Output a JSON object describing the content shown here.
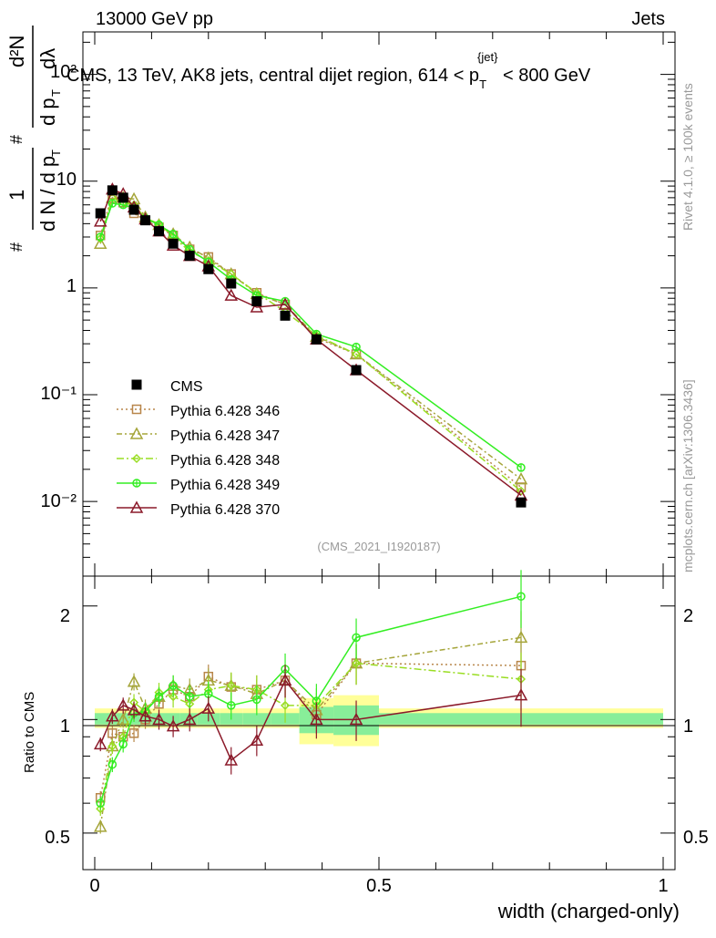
{
  "header": {
    "left": "13000 GeV pp",
    "right": "Jets",
    "rivet": "Rivet 4.1.0, ≥ 100k events",
    "mcplots": "mcplots.cern.ch [arXiv:1306.3436]",
    "analysis": "(CMS_2021_I1920187)"
  },
  "title": {
    "main": "CMS, 13 TeV, AK8 jets, central dijet region, 614 < p",
    "sub": "T",
    "sup": "{jet}",
    "tail": " < 800 GeV"
  },
  "main_ylabel": {
    "hash": "#",
    "one": "1",
    "dn": "d N / d p",
    "t": "T",
    "d2n": "d²N",
    "dpt": "d p",
    "dlambda": "dλ"
  },
  "ratio_ylabel": "Ratio to CMS",
  "xlabel": "width (charged-only)",
  "chart_data": [
    {
      "type": "line",
      "panel": "main",
      "yscale": "log",
      "xlim": [
        -0.025,
        1.0
      ],
      "ylim": [
        0.002,
        250
      ],
      "x": [
        0.01,
        0.031,
        0.05,
        0.069,
        0.089,
        0.113,
        0.138,
        0.167,
        0.2,
        0.24,
        0.285,
        0.335,
        0.39,
        0.46,
        0.75
      ],
      "x_ticks": [
        0,
        0.5,
        1
      ],
      "x_tick_labels": [
        "0",
        "0.5",
        "1"
      ],
      "y_ticks": [
        0.01,
        0.1,
        1,
        10,
        100
      ],
      "y_tick_labels": [
        "10⁻²",
        "10⁻¹",
        "1",
        "10",
        "10²"
      ],
      "series": [
        {
          "name": "CMS",
          "color": "#000000",
          "marker": "square-filled",
          "values": [
            5.0,
            8.2,
            7.0,
            5.4,
            4.3,
            3.4,
            2.6,
            2.0,
            1.5,
            1.1,
            0.75,
            0.55,
            0.33,
            0.17,
            0.0098
          ]
        },
        {
          "name": "Pythia 6.428 346",
          "color": "#b8864a",
          "marker": "square-open",
          "dash": "2,3",
          "values": [
            3.1,
            7.5,
            6.3,
            5.0,
            4.3,
            3.7,
            3.1,
            2.3,
            1.95,
            1.35,
            0.9,
            0.7,
            0.34,
            0.24,
            0.0136
          ]
        },
        {
          "name": "Pythia 6.428 347",
          "color": "#a5a53a",
          "marker": "triangle-open",
          "dash": "6,3,2,3",
          "values": [
            2.6,
            7.0,
            7.0,
            6.8,
            4.6,
            3.9,
            3.2,
            2.4,
            1.9,
            1.35,
            0.88,
            0.7,
            0.35,
            0.24,
            0.0162
          ]
        },
        {
          "name": "Pythia 6.428 348",
          "color": "#99dd22",
          "marker": "diamond-open",
          "dash": "8,3,2,3",
          "values": [
            2.9,
            7.0,
            6.3,
            6.0,
            4.5,
            4.0,
            3.0,
            2.2,
            1.8,
            1.35,
            0.9,
            0.6,
            0.36,
            0.24,
            0.0125
          ]
        },
        {
          "name": "Pythia 6.428 349",
          "color": "#33ee22",
          "marker": "plus-open",
          "values": [
            3.0,
            6.2,
            6.0,
            5.6,
            4.5,
            3.9,
            3.2,
            2.3,
            1.75,
            1.2,
            0.85,
            0.75,
            0.37,
            0.28,
            0.0208
          ]
        },
        {
          "name": "Pythia 6.428 370",
          "color": "#8b1a2a",
          "marker": "triangle-open",
          "values": [
            4.2,
            8.4,
            7.6,
            5.7,
            4.4,
            3.4,
            2.5,
            2.0,
            1.6,
            0.85,
            0.66,
            0.7,
            0.33,
            0.17,
            0.0114
          ]
        }
      ]
    },
    {
      "type": "line",
      "panel": "ratio",
      "yscale": "log",
      "ylabel": "Ratio to CMS",
      "xlabel": "width (charged-only)",
      "ylim": [
        0.4,
        2.4
      ],
      "y_ticks": [
        0.5,
        1,
        2
      ],
      "y_tick_labels": [
        "0.5",
        "1",
        "2"
      ],
      "band_edges": [
        0,
        0.02,
        0.04,
        0.06,
        0.08,
        0.1,
        0.125,
        0.15,
        0.18,
        0.22,
        0.26,
        0.31,
        0.36,
        0.42,
        0.5,
        1.0
      ],
      "band_yellow": [
        [
          0.95,
          1.07
        ],
        [
          0.95,
          1.07
        ],
        [
          0.95,
          1.07
        ],
        [
          0.95,
          1.07
        ],
        [
          0.95,
          1.07
        ],
        [
          0.95,
          1.07
        ],
        [
          0.95,
          1.07
        ],
        [
          0.95,
          1.07
        ],
        [
          0.95,
          1.07
        ],
        [
          0.95,
          1.07
        ],
        [
          0.95,
          1.07
        ],
        [
          0.95,
          1.07
        ],
        [
          0.86,
          1.14
        ],
        [
          0.85,
          1.16
        ],
        [
          0.95,
          1.07
        ]
      ],
      "band_green": [
        [
          0.97,
          1.04
        ],
        [
          0.97,
          1.04
        ],
        [
          0.97,
          1.04
        ],
        [
          0.97,
          1.04
        ],
        [
          0.97,
          1.04
        ],
        [
          0.97,
          1.04
        ],
        [
          0.97,
          1.04
        ],
        [
          0.97,
          1.04
        ],
        [
          0.97,
          1.04
        ],
        [
          0.97,
          1.04
        ],
        [
          0.97,
          1.04
        ],
        [
          0.97,
          1.04
        ],
        [
          0.92,
          1.08
        ],
        [
          0.91,
          1.09
        ],
        [
          0.97,
          1.04
        ]
      ],
      "series": [
        {
          "name": "Pythia 6.428 346",
          "values": [
            0.62,
            0.92,
            0.9,
            0.92,
            1.0,
            1.1,
            1.2,
            1.15,
            1.3,
            1.22,
            1.2,
            1.27,
            1.03,
            1.41,
            1.39
          ]
        },
        {
          "name": "Pythia 6.428 347",
          "values": [
            0.52,
            0.85,
            1.0,
            1.26,
            1.07,
            1.15,
            1.23,
            1.2,
            1.27,
            1.23,
            1.17,
            1.27,
            1.06,
            1.41,
            1.65
          ]
        },
        {
          "name": "Pythia 6.428 348",
          "values": [
            0.58,
            0.85,
            0.9,
            1.11,
            1.05,
            1.18,
            1.15,
            1.1,
            1.2,
            1.23,
            1.2,
            1.09,
            1.09,
            1.41,
            1.28
          ]
        },
        {
          "name": "Pythia 6.428 349",
          "values": [
            0.6,
            0.76,
            0.86,
            1.04,
            1.05,
            1.15,
            1.23,
            1.15,
            1.17,
            1.09,
            1.13,
            1.36,
            1.12,
            1.65,
            2.12
          ]
        },
        {
          "name": "Pythia 6.428 370",
          "values": [
            0.86,
            1.02,
            1.09,
            1.06,
            1.02,
            1.0,
            0.96,
            1.0,
            1.07,
            0.78,
            0.88,
            1.27,
            1.0,
            1.0,
            1.16
          ]
        }
      ]
    }
  ]
}
